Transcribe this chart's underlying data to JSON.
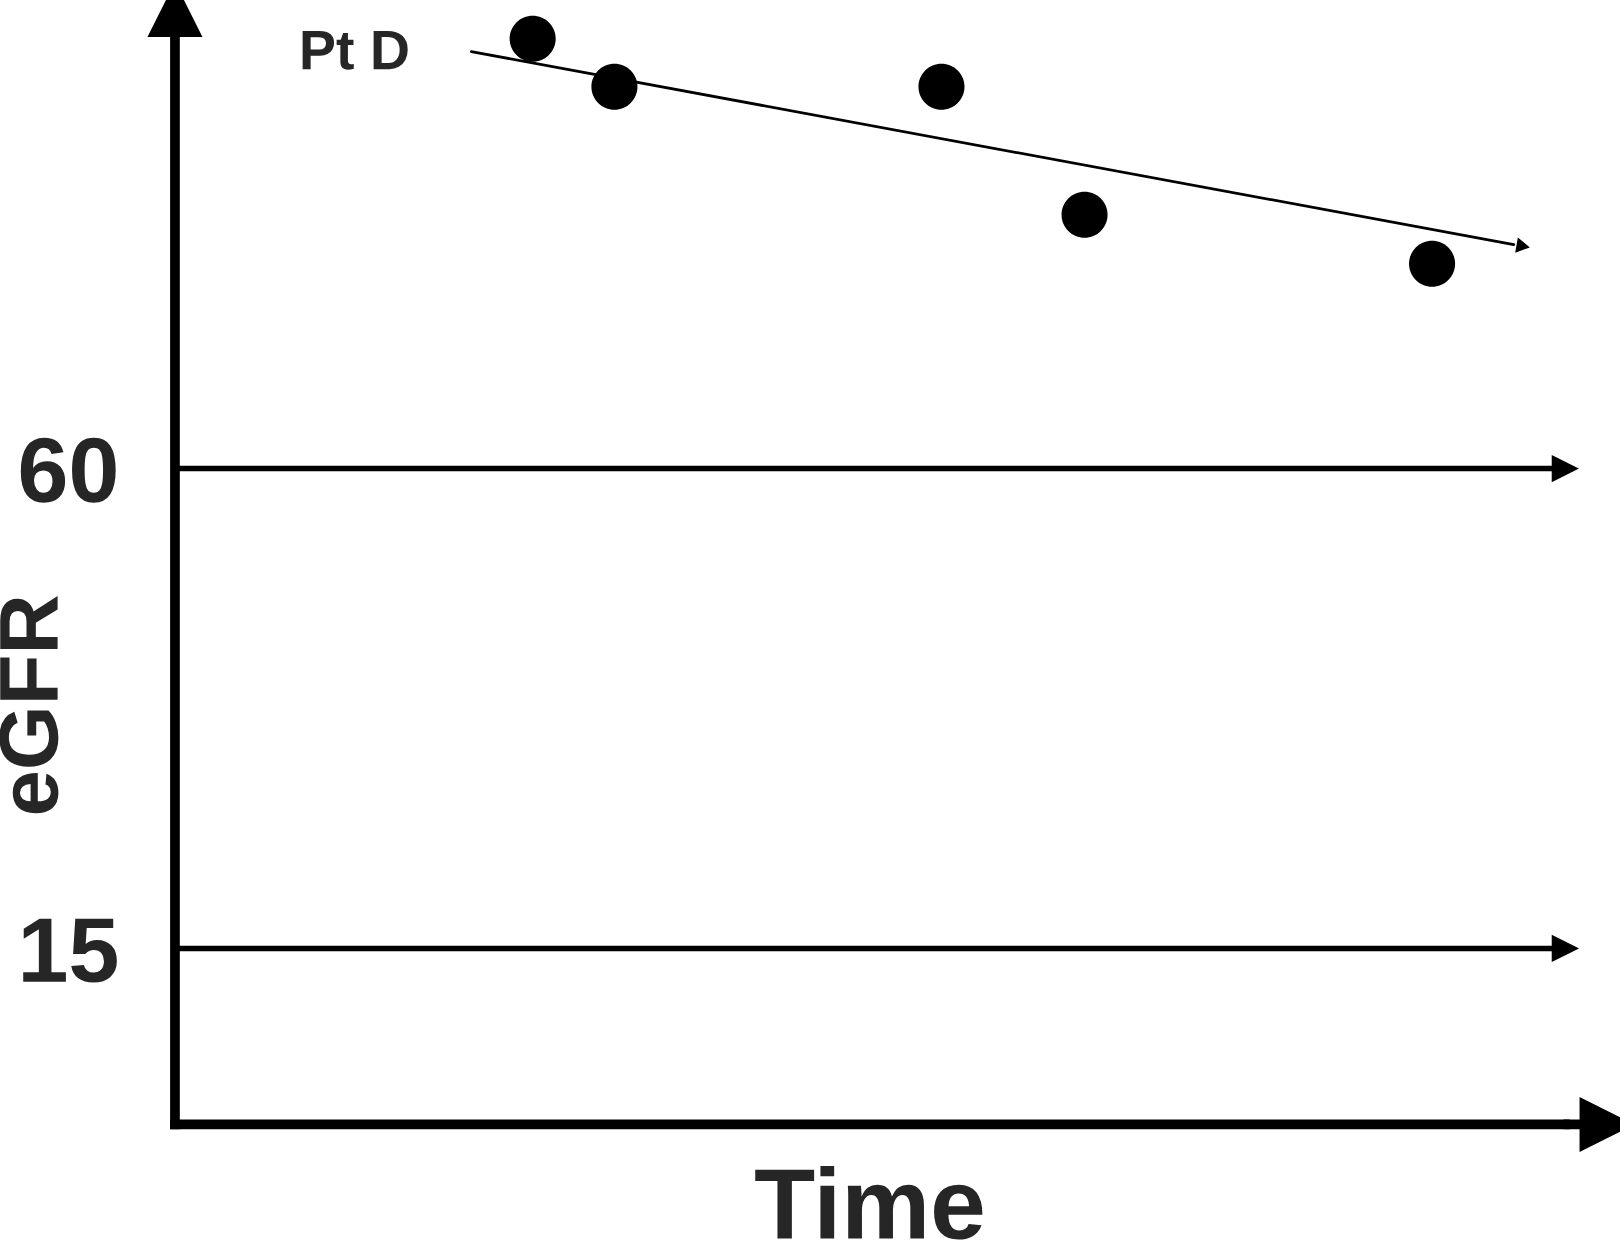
{
  "chart_data": {
    "type": "scatter",
    "xlabel": "Time",
    "ylabel": "eGFR",
    "categories": [
      null,
      null,
      null,
      null,
      null,
      null,
      null,
      null,
      null,
      null,
      null,
      null,
      null,
      null,
      null,
      null,
      null,
      null,
      null,
      null,
      null,
      null,
      null,
      null,
      null,
      null,
      null,
      null,
      null,
      null,
      null,
      null,
      null,
      null,
      null,
      null,
      null,
      null,
      null,
      null,
      null,
      null,
      null,
      null,
      null,
      null,
      null,
      null,
      null,
      null,
      null,
      null,
      null,
      null,
      null,
      null,
      null,
      null,
      null,
      null,
      null,
      null,
      null,
      null,
      null,
      null,
      null,
      null
    ],
    "series": [
      {
        "name": "Pt D",
        "color": "#000000",
        "values": [
          null,
          null,
          null,
          null,
          null,
          null,
          null,
          null,
          null,
          null,
          null,
          null,
          null,
          null,
          null,
          null,
          null,
          100.3,
          null,
          null,
          null,
          95.8,
          null,
          null,
          null,
          null,
          null,
          null,
          null,
          null,
          null,
          null,
          null,
          null,
          null,
          null,
          null,
          95.8,
          null,
          null,
          null,
          null,
          null,
          null,
          83.8,
          null,
          null,
          null,
          null,
          null,
          null,
          null,
          null,
          null,
          null,
          null,
          null,
          null,
          null,
          null,
          null,
          79.2,
          null,
          null,
          null,
          null,
          null,
          null
        ]
      },
      {
        "type": "line",
        "color": "#000000",
        "marker": "none",
        "values": [
          null,
          null,
          null,
          null,
          null,
          null,
          null,
          null,
          null,
          null,
          null,
          null,
          null,
          null,
          99.1,
          null,
          null,
          null,
          null,
          null,
          null,
          null,
          null,
          null,
          null,
          null,
          null,
          null,
          null,
          null,
          null,
          null,
          null,
          null,
          null,
          null,
          null,
          null,
          null,
          null,
          null,
          null,
          null,
          null,
          null,
          null,
          null,
          null,
          null,
          null,
          null,
          null,
          null,
          null,
          null,
          null,
          null,
          null,
          null,
          null,
          null,
          null,
          null,
          null,
          null,
          81.0,
          null,
          null
        ]
      }
    ],
    "ylim": [
      -1.5,
      103
    ],
    "yticks": [
      15,
      60
    ],
    "ref_lines": [
      {
        "axis": "y",
        "value": 60
      },
      {
        "axis": "y",
        "value": 15
      }
    ],
    "marker": "circle",
    "legend": false
  }
}
